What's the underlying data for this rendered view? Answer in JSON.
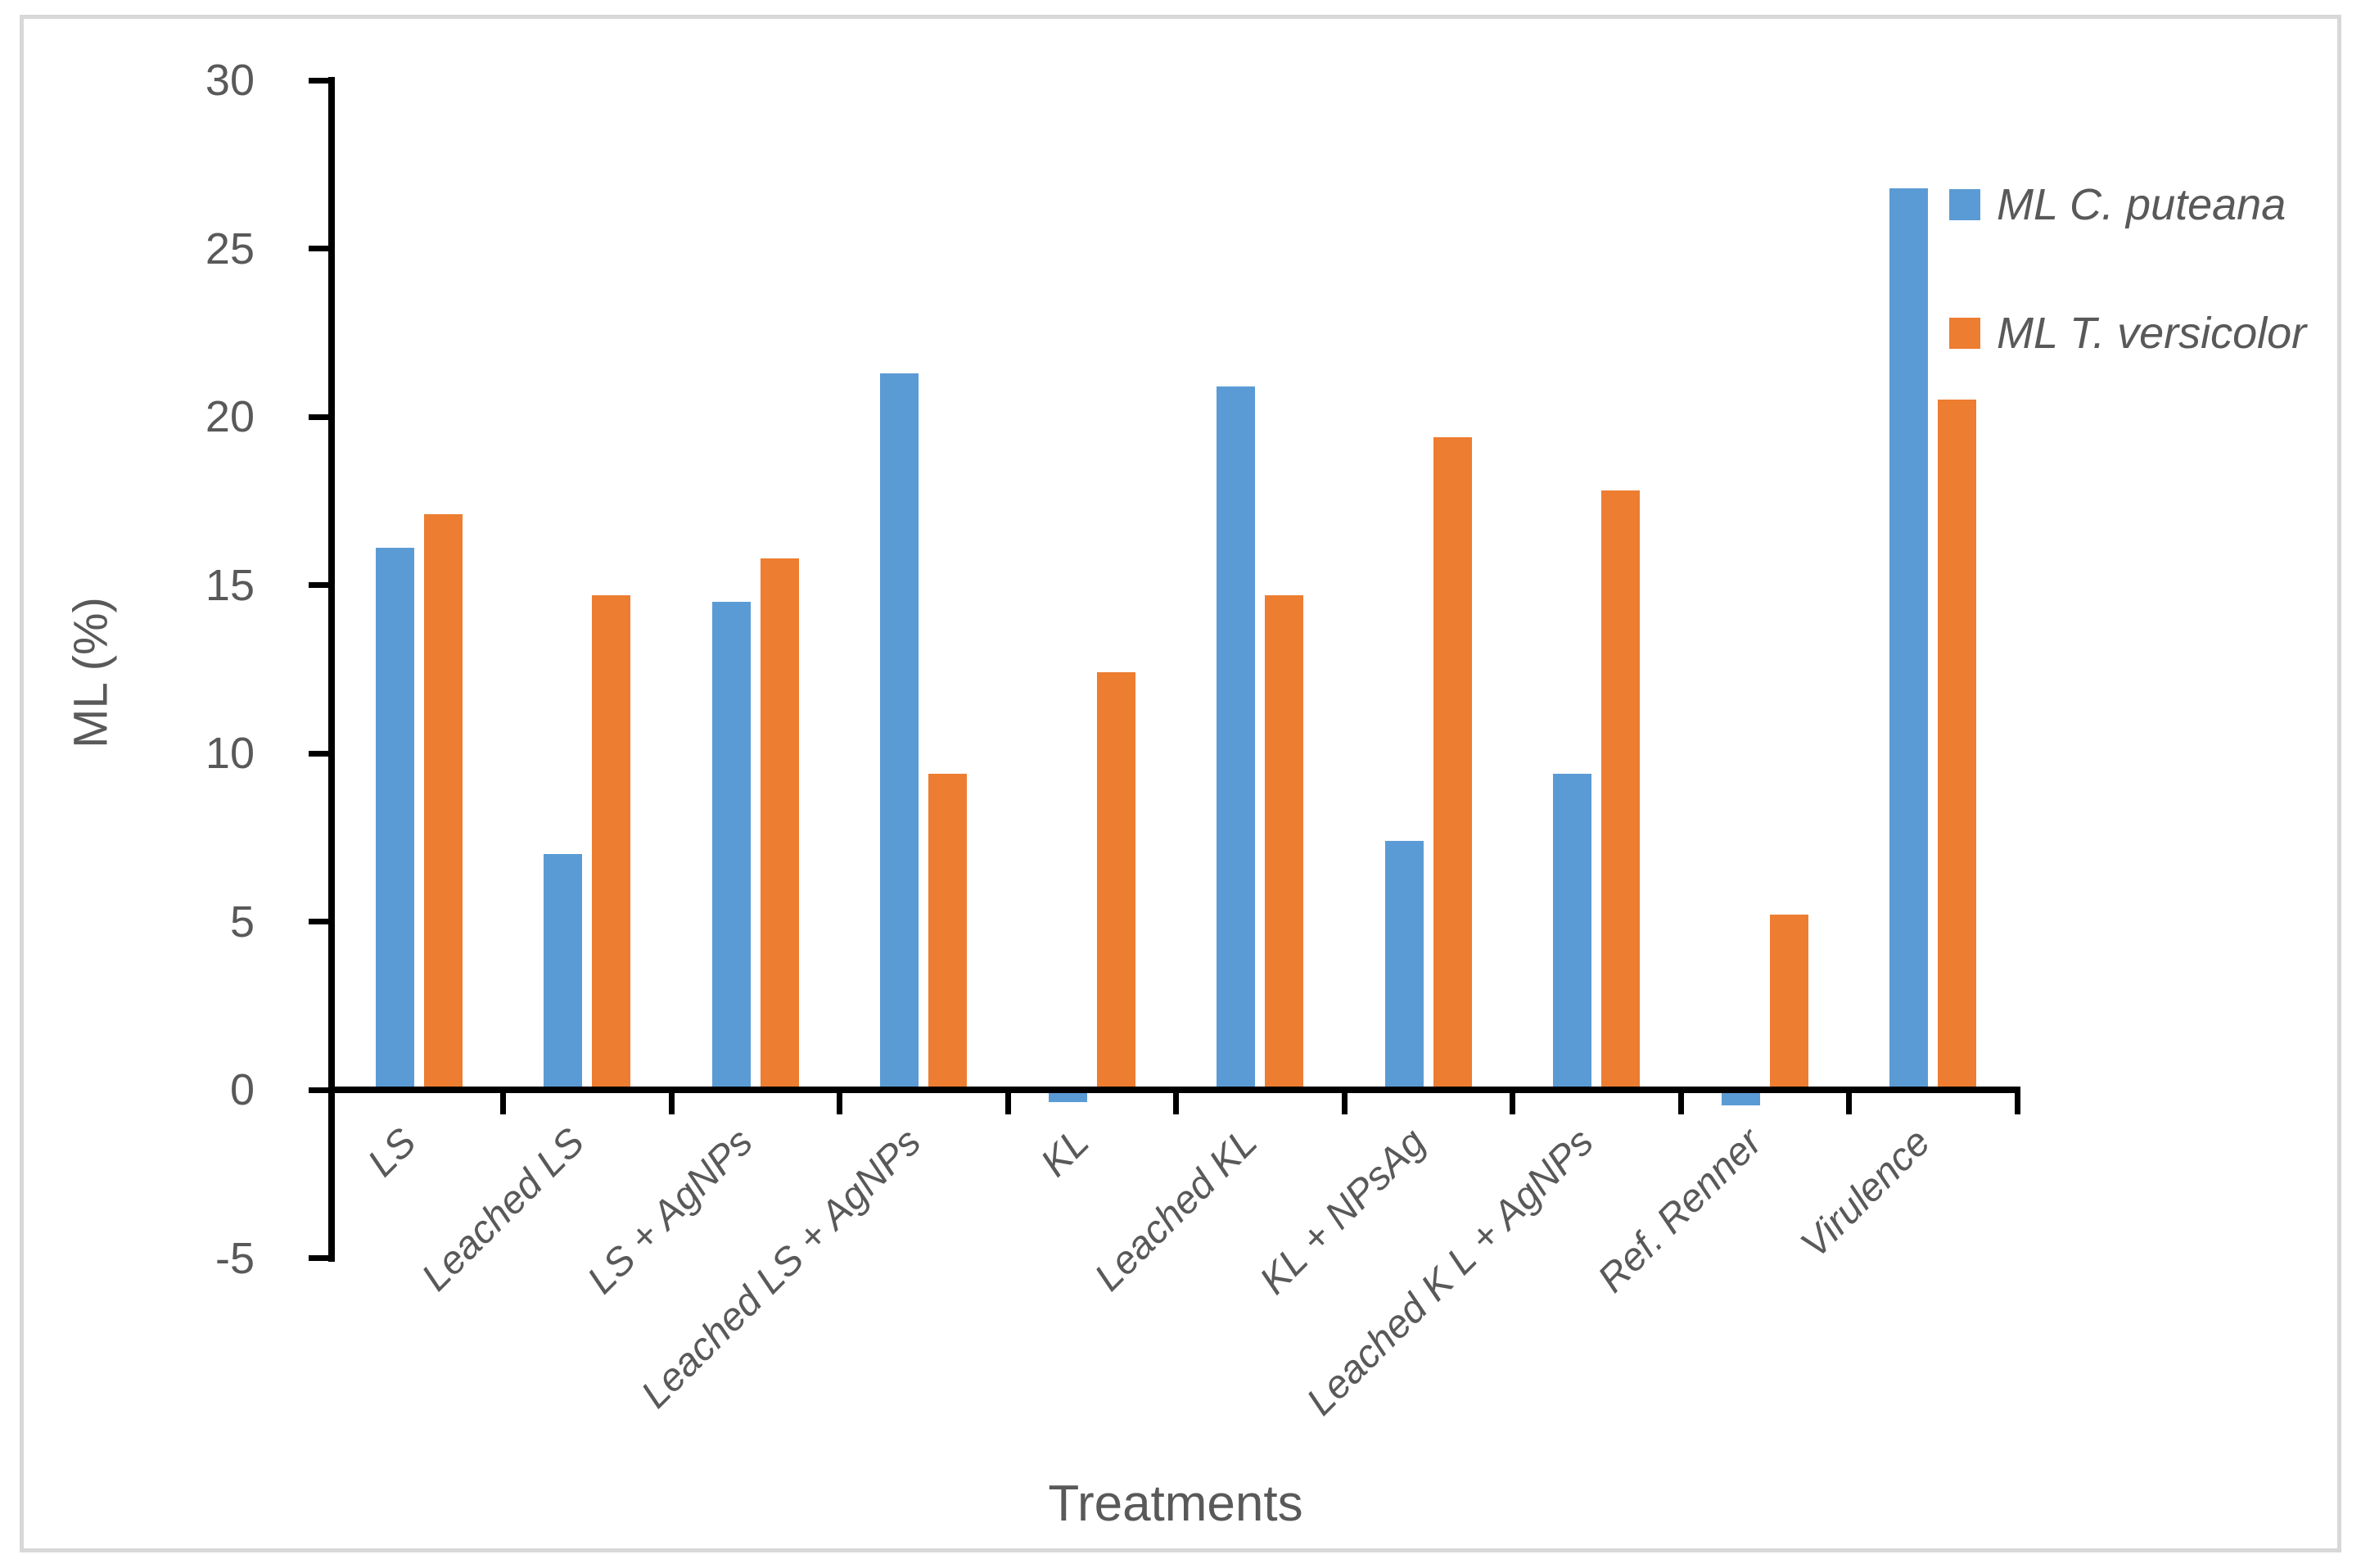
{
  "figure": {
    "border_color": "#D8D8D8",
    "background_color": "#FFFFFF",
    "axis_line_color": "#000000",
    "text_color": "#595959"
  },
  "chart_data": {
    "type": "bar",
    "title": "",
    "xlabel": "Treatments",
    "ylabel": "ML (%)",
    "ylim": [
      -5,
      30
    ],
    "yticks": [
      30,
      25,
      20,
      15,
      10,
      5,
      0,
      -5
    ],
    "grid": false,
    "legend_position": "right-top",
    "categories": [
      "LS",
      "Leached LS",
      "LS + AgNPs",
      "Leached LS + AgNPs",
      "KL",
      "Leached KL",
      "KL + NPsAg",
      "Leached K L + AgNPs",
      "Ref. Renner",
      "Virulence"
    ],
    "series": [
      {
        "name": "ML C. puteana",
        "color": "#5B9BD5",
        "values": [
          16.1,
          7.0,
          14.5,
          21.3,
          -0.3,
          20.9,
          7.4,
          9.4,
          -0.4,
          26.8
        ]
      },
      {
        "name": "ML T. versicolor",
        "color": "#ED7D31",
        "values": [
          17.1,
          14.7,
          15.8,
          9.4,
          12.4,
          14.7,
          19.4,
          17.8,
          5.2,
          20.5
        ]
      }
    ]
  }
}
